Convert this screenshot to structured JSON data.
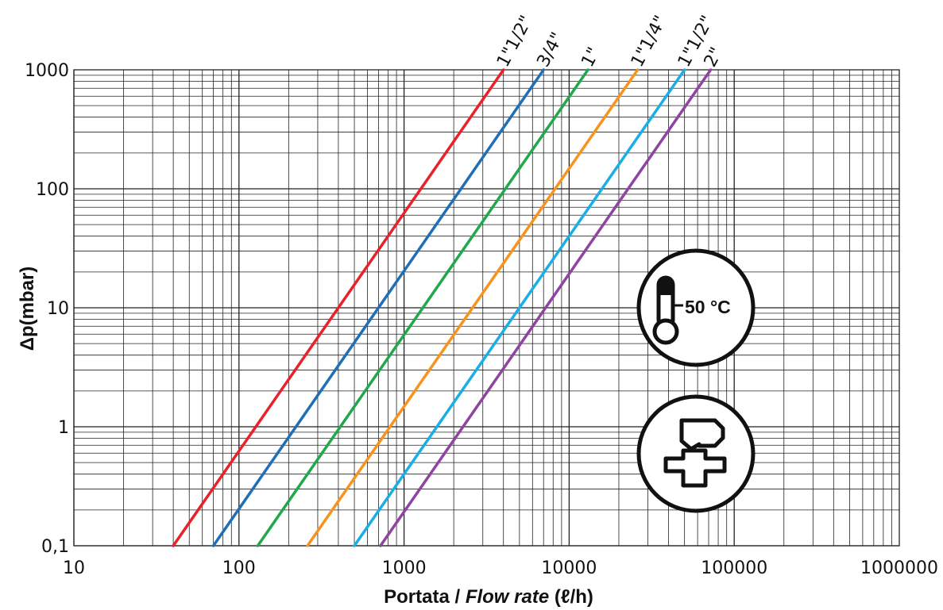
{
  "chart_data": {
    "type": "line",
    "xscale": "log",
    "yscale": "log",
    "xlim": [
      10,
      1000000
    ],
    "ylim": [
      0.1,
      1000
    ],
    "xticks": [
      {
        "value": 10,
        "label": "10"
      },
      {
        "value": 100,
        "label": "100"
      },
      {
        "value": 1000,
        "label": "1000"
      },
      {
        "value": 10000,
        "label": "10000"
      },
      {
        "value": 100000,
        "label": "100000"
      },
      {
        "value": 1000000,
        "label": "1000000"
      }
    ],
    "yticks": [
      {
        "value": 0.1,
        "label": "0,1"
      },
      {
        "value": 1,
        "label": "1"
      },
      {
        "value": 10,
        "label": "10"
      },
      {
        "value": 100,
        "label": "100"
      },
      {
        "value": 1000,
        "label": "1000"
      }
    ],
    "xlabel_prefix": "Portata / ",
    "xlabel_italic": "Flow rate",
    "xlabel_suffix": " (ℓ/h)",
    "ylabel": "Δp(mbar)",
    "grid": true,
    "series": [
      {
        "name": "1\"1/2\"",
        "color": "#e8212b",
        "x": [
          40,
          4000
        ],
        "y": [
          0.1,
          1000
        ]
      },
      {
        "name": "3/4\"",
        "color": "#1f6fb8",
        "x": [
          70,
          7000
        ],
        "y": [
          0.1,
          1000
        ]
      },
      {
        "name": "1\"",
        "color": "#21a84a",
        "x": [
          130,
          13000
        ],
        "y": [
          0.1,
          1000
        ]
      },
      {
        "name": "1\"1/4\"",
        "color": "#f7941d",
        "x": [
          260,
          26000
        ],
        "y": [
          0.1,
          1000
        ]
      },
      {
        "name": "1\"1/2\"",
        "color": "#1aaee6",
        "x": [
          500,
          50000
        ],
        "y": [
          0.1,
          1000
        ]
      },
      {
        "name": "2\"",
        "color": "#8e44a0",
        "x": [
          720,
          72000
        ],
        "y": [
          0.1,
          1000
        ]
      }
    ]
  },
  "icons": {
    "temperature_text": "50 °C",
    "temperature_icon": "thermometer-icon",
    "valve_icon": "valve-icon"
  }
}
